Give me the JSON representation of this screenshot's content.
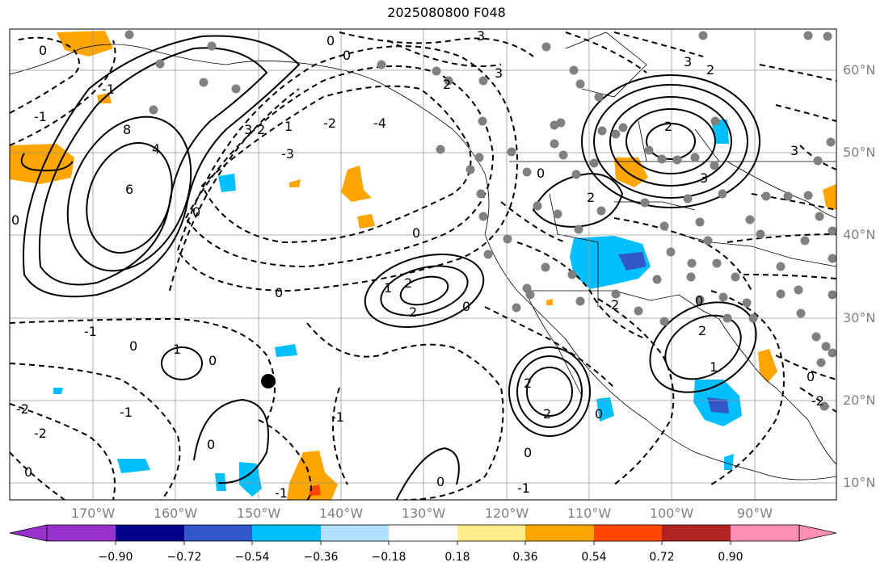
{
  "title": "2025080800 F048",
  "map": {
    "projection": "cylindrical",
    "lon_range": [
      -180,
      -82
    ],
    "lat_range": [
      8,
      65
    ],
    "lat_ticks": [
      "60°N",
      "50°N",
      "40°N",
      "30°N",
      "20°N",
      "10°N"
    ],
    "lon_ticks": [
      "170°W",
      "160°W",
      "150°W",
      "140°W",
      "130°W",
      "120°W",
      "110°W",
      "100°W",
      "90°W"
    ],
    "contour_labels": [
      "0",
      "1",
      "2",
      "3",
      "4",
      "6",
      "8",
      "-1",
      "-2",
      "-3",
      "-4"
    ],
    "contour_style": "solid = positive, dashed = negative",
    "grid": true
  },
  "colorbar": {
    "ticks": [
      "−0.90",
      "−0.72",
      "−0.54",
      "−0.36",
      "−0.18",
      "0.18",
      "0.36",
      "0.54",
      "0.72",
      "0.90"
    ],
    "colors": [
      "#9932cc",
      "#00008b",
      "#3258c8",
      "#00bfff",
      "#b0e2ff",
      "#ffffff",
      "#ffec8b",
      "#ffa500",
      "#ff4500",
      "#b22222",
      "#ff8fb3"
    ],
    "extend": "both"
  }
}
